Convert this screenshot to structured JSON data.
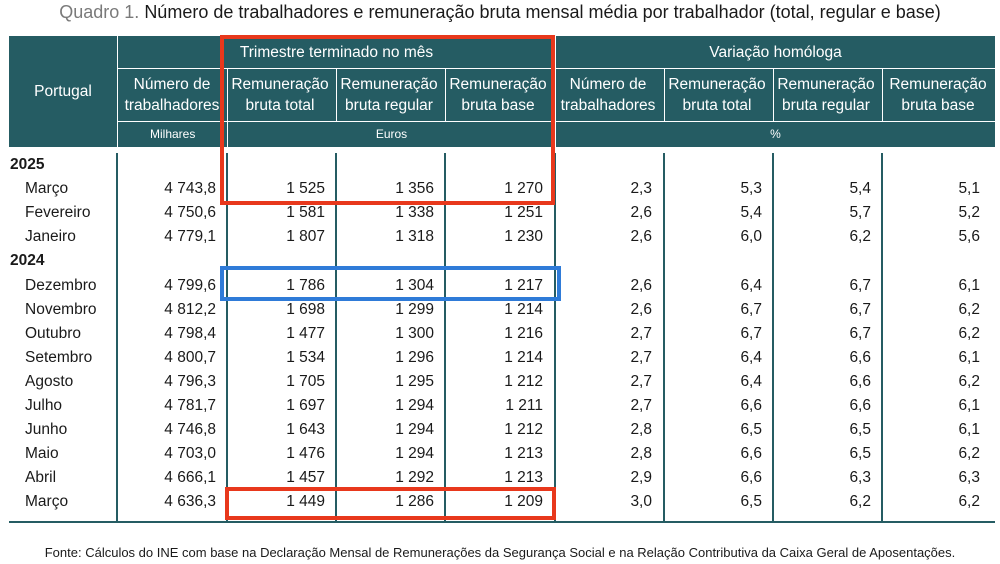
{
  "title": {
    "prefix": "Quadro 1.",
    "text": "Número de trabalhadores e remuneração bruta mensal média por trabalhador (total, regular e base)"
  },
  "header": {
    "country": "Portugal",
    "group1": "Trimestre terminado no mês",
    "group2": "Variação homóloga",
    "columns": [
      "Número de trabalhadores",
      "Remuneração bruta total",
      "Remuneração bruta regular",
      "Remuneração bruta base",
      "Número de trabalhadores",
      "Remuneração bruta total",
      "Remuneração bruta regular",
      "Remuneração bruta base"
    ],
    "units": {
      "milhares": "Milhares",
      "euros": "Euros",
      "percent": "%"
    }
  },
  "rows": [
    {
      "type": "year",
      "label": "2025"
    },
    {
      "type": "data",
      "label": "Março",
      "values": [
        "4 743,8",
        "1 525",
        "1 356",
        "1 270",
        "2,3",
        "5,3",
        "5,4",
        "5,1"
      ]
    },
    {
      "type": "data",
      "label": "Fevereiro",
      "values": [
        "4 750,6",
        "1 581",
        "1 338",
        "1 251",
        "2,6",
        "5,4",
        "5,7",
        "5,2"
      ]
    },
    {
      "type": "data",
      "label": "Janeiro",
      "values": [
        "4 779,1",
        "1 807",
        "1 318",
        "1 230",
        "2,6",
        "6,0",
        "6,2",
        "5,6"
      ]
    },
    {
      "type": "year",
      "label": "2024"
    },
    {
      "type": "data",
      "label": "Dezembro",
      "values": [
        "4 799,6",
        "1 786",
        "1 304",
        "1 217",
        "2,6",
        "6,4",
        "6,7",
        "6,1"
      ]
    },
    {
      "type": "data",
      "label": "Novembro",
      "values": [
        "4 812,2",
        "1 698",
        "1 299",
        "1 214",
        "2,6",
        "6,7",
        "6,7",
        "6,2"
      ]
    },
    {
      "type": "data",
      "label": "Outubro",
      "values": [
        "4 798,4",
        "1 477",
        "1 300",
        "1 216",
        "2,7",
        "6,7",
        "6,7",
        "6,2"
      ]
    },
    {
      "type": "data",
      "label": "Setembro",
      "values": [
        "4 800,7",
        "1 534",
        "1 296",
        "1 214",
        "2,7",
        "6,4",
        "6,6",
        "6,1"
      ]
    },
    {
      "type": "data",
      "label": "Agosto",
      "values": [
        "4 796,3",
        "1 705",
        "1 295",
        "1 212",
        "2,7",
        "6,4",
        "6,6",
        "6,2"
      ]
    },
    {
      "type": "data",
      "label": "Julho",
      "values": [
        "4 781,7",
        "1 697",
        "1 294",
        "1 211",
        "2,7",
        "6,6",
        "6,6",
        "6,1"
      ]
    },
    {
      "type": "data",
      "label": "Junho",
      "values": [
        "4 746,8",
        "1 643",
        "1 294",
        "1 212",
        "2,8",
        "6,5",
        "6,5",
        "6,1"
      ]
    },
    {
      "type": "data",
      "label": "Maio",
      "values": [
        "4 703,0",
        "1 476",
        "1 294",
        "1 213",
        "2,8",
        "6,6",
        "6,5",
        "6,2"
      ]
    },
    {
      "type": "data",
      "label": "Abril",
      "values": [
        "4 666,1",
        "1 457",
        "1 292",
        "1 213",
        "2,9",
        "6,6",
        "6,3",
        "6,3"
      ]
    },
    {
      "type": "data",
      "label": "Março",
      "values": [
        "4 636,3",
        "1 449",
        "1 286",
        "1 209",
        "3,0",
        "6,5",
        "6,2",
        "6,2"
      ]
    }
  ],
  "source": {
    "label": "Fonte:",
    "text": "Cálculos do INE com base na Declaração Mensal de Remunerações da Segurança Social e na Relação Contributiva da Caixa Geral de Aposentações."
  },
  "colors": {
    "header": "#255c63",
    "highlight_red": "#e8381c",
    "highlight_blue": "#2f7bd8"
  }
}
